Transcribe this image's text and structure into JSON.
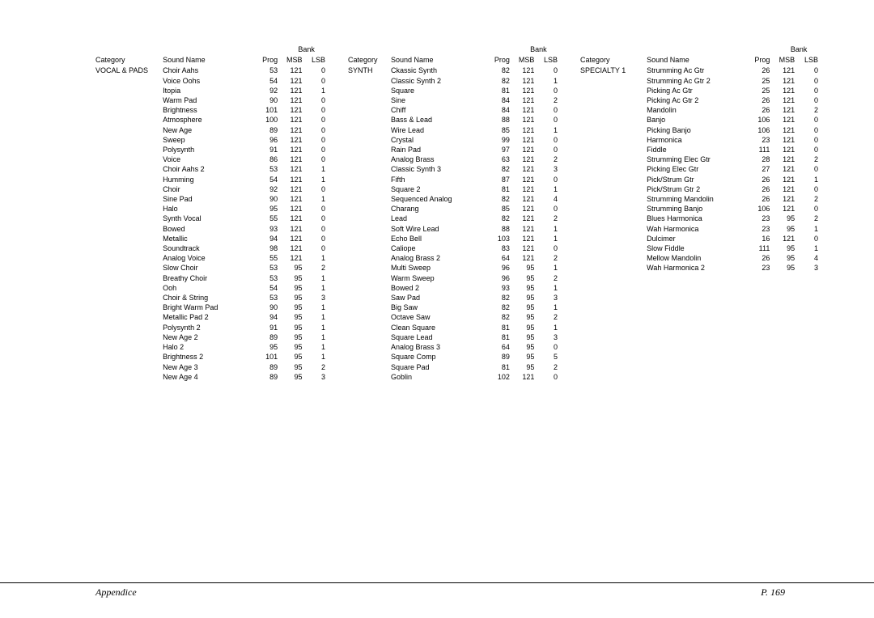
{
  "headers": {
    "category": "Category",
    "sound_name": "Sound Name",
    "prog": "Prog",
    "bank": "Bank",
    "msb": "MSB",
    "lsb": "LSB"
  },
  "footer": {
    "left": "Appendice",
    "right": "P. 169"
  },
  "col1": {
    "category": "VOCAL & PADS",
    "rows": [
      {
        "name": "Choir Aahs",
        "prog": 53,
        "msb": 121,
        "lsb": 0
      },
      {
        "name": "Voice Oohs",
        "prog": 54,
        "msb": 121,
        "lsb": 0
      },
      {
        "name": "Itopia",
        "prog": 92,
        "msb": 121,
        "lsb": 1
      },
      {
        "name": "Warm Pad",
        "prog": 90,
        "msb": 121,
        "lsb": 0
      },
      {
        "name": "Brightness",
        "prog": 101,
        "msb": 121,
        "lsb": 0
      },
      {
        "name": "Atmosphere",
        "prog": 100,
        "msb": 121,
        "lsb": 0
      },
      {
        "name": "New Age",
        "prog": 89,
        "msb": 121,
        "lsb": 0
      },
      {
        "name": "Sweep",
        "prog": 96,
        "msb": 121,
        "lsb": 0
      },
      {
        "name": "Polysynth",
        "prog": 91,
        "msb": 121,
        "lsb": 0
      },
      {
        "name": "Voice",
        "prog": 86,
        "msb": 121,
        "lsb": 0
      },
      {
        "name": "Choir Aahs 2",
        "prog": 53,
        "msb": 121,
        "lsb": 1
      },
      {
        "name": "Humming",
        "prog": 54,
        "msb": 121,
        "lsb": 1
      },
      {
        "name": "Choir",
        "prog": 92,
        "msb": 121,
        "lsb": 0
      },
      {
        "name": "Sine Pad",
        "prog": 90,
        "msb": 121,
        "lsb": 1
      },
      {
        "name": "Halo",
        "prog": 95,
        "msb": 121,
        "lsb": 0
      },
      {
        "name": "Synth Vocal",
        "prog": 55,
        "msb": 121,
        "lsb": 0
      },
      {
        "name": "Bowed",
        "prog": 93,
        "msb": 121,
        "lsb": 0
      },
      {
        "name": "Metallic",
        "prog": 94,
        "msb": 121,
        "lsb": 0
      },
      {
        "name": "Soundtrack",
        "prog": 98,
        "msb": 121,
        "lsb": 0
      },
      {
        "name": "Analog Voice",
        "prog": 55,
        "msb": 121,
        "lsb": 1
      },
      {
        "name": "Slow Choir",
        "prog": 53,
        "msb": 95,
        "lsb": 2
      },
      {
        "name": "Breathy Choir",
        "prog": 53,
        "msb": 95,
        "lsb": 1
      },
      {
        "name": "Ooh",
        "prog": 54,
        "msb": 95,
        "lsb": 1
      },
      {
        "name": "Choir & String",
        "prog": 53,
        "msb": 95,
        "lsb": 3
      },
      {
        "name": "Bright Warm Pad",
        "prog": 90,
        "msb": 95,
        "lsb": 1
      },
      {
        "name": "Metallic Pad 2",
        "prog": 94,
        "msb": 95,
        "lsb": 1
      },
      {
        "name": "Polysynth 2",
        "prog": 91,
        "msb": 95,
        "lsb": 1
      },
      {
        "name": "New Age 2",
        "prog": 89,
        "msb": 95,
        "lsb": 1
      },
      {
        "name": "Halo 2",
        "prog": 95,
        "msb": 95,
        "lsb": 1
      },
      {
        "name": "Brightness 2",
        "prog": 101,
        "msb": 95,
        "lsb": 1
      },
      {
        "name": "New Age 3",
        "prog": 89,
        "msb": 95,
        "lsb": 2
      },
      {
        "name": "New Age 4",
        "prog": 89,
        "msb": 95,
        "lsb": 3
      }
    ]
  },
  "col2": {
    "category": "SYNTH",
    "rows": [
      {
        "name": "Ckassic Synth",
        "prog": 82,
        "msb": 121,
        "lsb": 0
      },
      {
        "name": "Classic Synth 2",
        "prog": 82,
        "msb": 121,
        "lsb": 1
      },
      {
        "name": "Square",
        "prog": 81,
        "msb": 121,
        "lsb": 0
      },
      {
        "name": "Sine",
        "prog": 84,
        "msb": 121,
        "lsb": 2
      },
      {
        "name": "Chiff",
        "prog": 84,
        "msb": 121,
        "lsb": 0
      },
      {
        "name": "Bass & Lead",
        "prog": 88,
        "msb": 121,
        "lsb": 0
      },
      {
        "name": "Wire Lead",
        "prog": 85,
        "msb": 121,
        "lsb": 1
      },
      {
        "name": "Crystal",
        "prog": 99,
        "msb": 121,
        "lsb": 0
      },
      {
        "name": "Rain Pad",
        "prog": 97,
        "msb": 121,
        "lsb": 0
      },
      {
        "name": "Analog Brass",
        "prog": 63,
        "msb": 121,
        "lsb": 2
      },
      {
        "name": "Classic Synth 3",
        "prog": 82,
        "msb": 121,
        "lsb": 3
      },
      {
        "name": "Fifth",
        "prog": 87,
        "msb": 121,
        "lsb": 0
      },
      {
        "name": "Square 2",
        "prog": 81,
        "msb": 121,
        "lsb": 1
      },
      {
        "name": "Sequenced Analog",
        "prog": 82,
        "msb": 121,
        "lsb": 4
      },
      {
        "name": "Charang",
        "prog": 85,
        "msb": 121,
        "lsb": 0
      },
      {
        "name": "Lead",
        "prog": 82,
        "msb": 121,
        "lsb": 2
      },
      {
        "name": "Soft Wire Lead",
        "prog": 88,
        "msb": 121,
        "lsb": 1
      },
      {
        "name": "Echo Bell",
        "prog": 103,
        "msb": 121,
        "lsb": 1
      },
      {
        "name": "Caliope",
        "prog": 83,
        "msb": 121,
        "lsb": 0
      },
      {
        "name": "Analog Brass 2",
        "prog": 64,
        "msb": 121,
        "lsb": 2
      },
      {
        "name": "Multi Sweep",
        "prog": 96,
        "msb": 95,
        "lsb": 1
      },
      {
        "name": "Warm Sweep",
        "prog": 96,
        "msb": 95,
        "lsb": 2
      },
      {
        "name": "Bowed 2",
        "prog": 93,
        "msb": 95,
        "lsb": 1
      },
      {
        "name": "Saw Pad",
        "prog": 82,
        "msb": 95,
        "lsb": 3
      },
      {
        "name": "Big Saw",
        "prog": 82,
        "msb": 95,
        "lsb": 1
      },
      {
        "name": "Octave Saw",
        "prog": 82,
        "msb": 95,
        "lsb": 2
      },
      {
        "name": "Clean Square",
        "prog": 81,
        "msb": 95,
        "lsb": 1
      },
      {
        "name": "Square Lead",
        "prog": 81,
        "msb": 95,
        "lsb": 3
      },
      {
        "name": "Analog Brass 3",
        "prog": 64,
        "msb": 95,
        "lsb": 0
      },
      {
        "name": "Square Comp",
        "prog": 89,
        "msb": 95,
        "lsb": 5
      },
      {
        "name": "Square Pad",
        "prog": 81,
        "msb": 95,
        "lsb": 2
      },
      {
        "name": "Goblin",
        "prog": 102,
        "msb": 121,
        "lsb": 0
      }
    ]
  },
  "col3": {
    "category": "SPECIALTY 1",
    "rows": [
      {
        "name": "Strumming Ac Gtr",
        "prog": 26,
        "msb": 121,
        "lsb": 0
      },
      {
        "name": "Strumming Ac Gtr 2",
        "prog": 25,
        "msb": 121,
        "lsb": 0
      },
      {
        "name": "Picking Ac Gtr",
        "prog": 25,
        "msb": 121,
        "lsb": 0
      },
      {
        "name": "Picking Ac Gtr 2",
        "prog": 26,
        "msb": 121,
        "lsb": 0
      },
      {
        "name": "Mandolin",
        "prog": 26,
        "msb": 121,
        "lsb": 2
      },
      {
        "name": "Banjo",
        "prog": 106,
        "msb": 121,
        "lsb": 0
      },
      {
        "name": "Picking Banjo",
        "prog": 106,
        "msb": 121,
        "lsb": 0
      },
      {
        "name": "Harmonica",
        "prog": 23,
        "msb": 121,
        "lsb": 0
      },
      {
        "name": "Fiddle",
        "prog": 111,
        "msb": 121,
        "lsb": 0
      },
      {
        "name": "Strumming Elec Gtr",
        "prog": 28,
        "msb": 121,
        "lsb": 2
      },
      {
        "name": "Picking Elec Gtr",
        "prog": 27,
        "msb": 121,
        "lsb": 0
      },
      {
        "name": "Pick/Strum Gtr",
        "prog": 26,
        "msb": 121,
        "lsb": 1
      },
      {
        "name": "Pick/Strum Gtr 2",
        "prog": 26,
        "msb": 121,
        "lsb": 0
      },
      {
        "name": "Strumming Mandolin",
        "prog": 26,
        "msb": 121,
        "lsb": 2
      },
      {
        "name": "Strumming Banjo",
        "prog": 106,
        "msb": 121,
        "lsb": 0
      },
      {
        "name": "Blues Harmonica",
        "prog": 23,
        "msb": 95,
        "lsb": 2
      },
      {
        "name": "Wah Harmonica",
        "prog": 23,
        "msb": 95,
        "lsb": 1
      },
      {
        "name": "Dulcimer",
        "prog": 16,
        "msb": 121,
        "lsb": 0
      },
      {
        "name": "Slow Fiddle",
        "prog": 111,
        "msb": 95,
        "lsb": 1
      },
      {
        "name": "Mellow Mandolin",
        "prog": 26,
        "msb": 95,
        "lsb": 4
      },
      {
        "name": "Wah Harmonica 2",
        "prog": 23,
        "msb": 95,
        "lsb": 3
      }
    ]
  }
}
